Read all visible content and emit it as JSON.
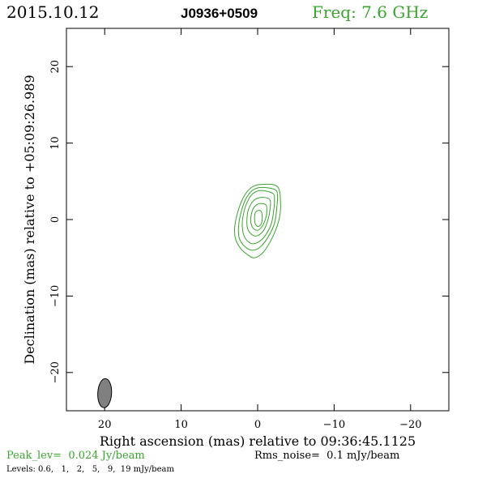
{
  "header": {
    "date": "2015.10.12",
    "source": "J0936+0509",
    "freq": "Freq: 7.6 GHz"
  },
  "footer": {
    "peak": "Peak_lev=  0.024 Jy/beam",
    "rms": "Rms_noise=  0.1 mJy/beam",
    "levels": "Levels: 0.6,   1,   2,   5,   9,  19 mJy/beam"
  },
  "colors": {
    "contour": "#3aa52e",
    "green_text": "#3aa52e",
    "frame": "#000000",
    "beam_fill": "#808080"
  },
  "chart_data": {
    "type": "contour",
    "xlabel": "Right ascension (mas) relative to 09:36:45.1125",
    "ylabel": "Declination (mas) relative to +05:09:26.989",
    "xlim": [
      25,
      -25
    ],
    "ylim": [
      -25,
      25
    ],
    "x_ticks": [
      20,
      10,
      0,
      -10,
      -20
    ],
    "x_tick_labels": [
      "20",
      "10",
      "0",
      "−10",
      "−20"
    ],
    "y_ticks": [
      20,
      10,
      0,
      -10,
      -20
    ],
    "y_tick_labels": [
      "20",
      "10",
      "0",
      "−10",
      "−20"
    ],
    "contour_levels_mJy": [
      0.6,
      1,
      2,
      5,
      9,
      19
    ],
    "peak_Jy_per_beam": 0.024,
    "rms_mJy_per_beam": 0.1,
    "contours": [
      {
        "level": 0.6,
        "points": [
          [
            -2.6,
            4.3
          ],
          [
            -0.5,
            4.6
          ],
          [
            0.8,
            4.2
          ],
          [
            1.8,
            3.0
          ],
          [
            2.6,
            1.0
          ],
          [
            3.0,
            -1.0
          ],
          [
            2.9,
            -2.5
          ],
          [
            2.2,
            -3.8
          ],
          [
            1.3,
            -4.6
          ],
          [
            0.4,
            -5.0
          ],
          [
            -0.8,
            -4.2
          ],
          [
            -2.0,
            -2.2
          ],
          [
            -2.8,
            0.0
          ],
          [
            -3.0,
            2.0
          ]
        ]
      },
      {
        "level": 1,
        "points": [
          [
            -2.3,
            3.9
          ],
          [
            -0.5,
            4.2
          ],
          [
            0.7,
            3.8
          ],
          [
            1.6,
            2.6
          ],
          [
            2.2,
            0.8
          ],
          [
            2.5,
            -1.0
          ],
          [
            2.4,
            -2.4
          ],
          [
            1.8,
            -3.4
          ],
          [
            0.8,
            -4.0
          ],
          [
            -0.2,
            -3.7
          ],
          [
            -1.3,
            -2.4
          ],
          [
            -2.2,
            -0.5
          ],
          [
            -2.5,
            1.5
          ],
          [
            -2.6,
            3.0
          ]
        ]
      },
      {
        "level": 2,
        "points": [
          [
            -2.0,
            3.4
          ],
          [
            -0.5,
            3.8
          ],
          [
            0.6,
            3.4
          ],
          [
            1.4,
            2.2
          ],
          [
            1.9,
            0.5
          ],
          [
            2.0,
            -1.0
          ],
          [
            1.7,
            -2.3
          ],
          [
            0.9,
            -3.1
          ],
          [
            0.0,
            -3.0
          ],
          [
            -1.0,
            -2.1
          ],
          [
            -1.8,
            -0.5
          ],
          [
            -2.1,
            1.2
          ],
          [
            -2.2,
            2.6
          ]
        ]
      },
      {
        "level": 5,
        "points": [
          [
            -1.6,
            2.6
          ],
          [
            -0.5,
            2.9
          ],
          [
            0.5,
            2.5
          ],
          [
            1.2,
            1.3
          ],
          [
            1.4,
            0.0
          ],
          [
            1.3,
            -1.2
          ],
          [
            0.7,
            -2.0
          ],
          [
            0.0,
            -2.1
          ],
          [
            -0.8,
            -1.4
          ],
          [
            -1.3,
            -0.2
          ],
          [
            -1.6,
            1.2
          ]
        ]
      },
      {
        "level": 9,
        "points": [
          [
            -1.1,
            1.9
          ],
          [
            -0.3,
            2.1
          ],
          [
            0.4,
            1.7
          ],
          [
            0.8,
            0.8
          ],
          [
            0.9,
            -0.3
          ],
          [
            0.6,
            -1.1
          ],
          [
            0.0,
            -1.4
          ],
          [
            -0.6,
            -0.9
          ],
          [
            -1.0,
            0.0
          ],
          [
            -1.2,
            1.0
          ]
        ]
      },
      {
        "level": 19,
        "points": [
          [
            -0.5,
            1.0
          ],
          [
            -0.1,
            1.2
          ],
          [
            0.3,
            0.9
          ],
          [
            0.4,
            0.2
          ],
          [
            0.3,
            -0.6
          ],
          [
            -0.1,
            -0.9
          ],
          [
            -0.5,
            -0.5
          ],
          [
            -0.6,
            0.3
          ]
        ]
      }
    ],
    "beam": {
      "x": 20,
      "y": -22.7,
      "major_mas": 3.8,
      "minor_mas": 1.8,
      "pa_deg": 3
    }
  }
}
